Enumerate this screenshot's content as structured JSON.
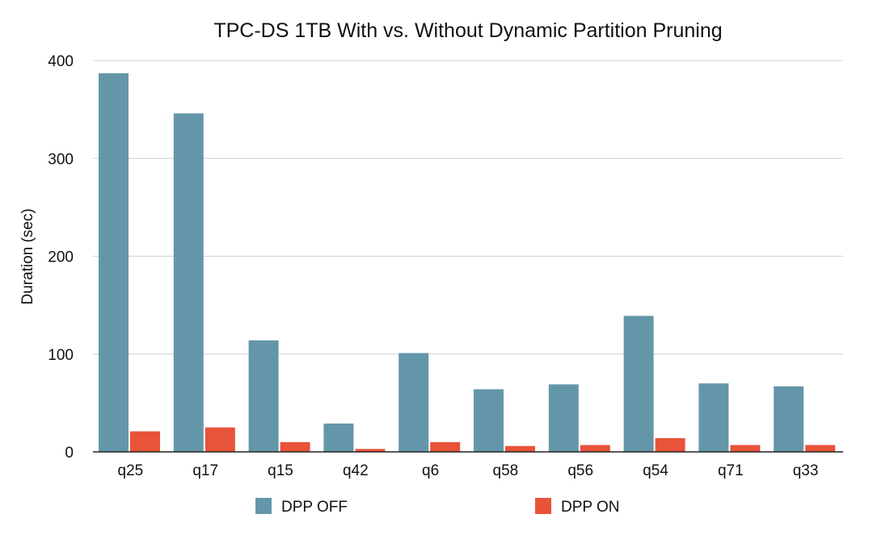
{
  "chart_data": {
    "type": "bar",
    "title": "TPC-DS 1TB With vs. Without Dynamic Partition Pruning",
    "xlabel": "",
    "ylabel": "Duration (sec)",
    "ylim": [
      0,
      400
    ],
    "yticks": [
      0,
      100,
      200,
      300,
      400
    ],
    "grid": true,
    "legend_position": "bottom",
    "categories": [
      "q25",
      "q17",
      "q15",
      "q42",
      "q6",
      "q58",
      "q56",
      "q54",
      "q71",
      "q33"
    ],
    "series": [
      {
        "name": "DPP OFF",
        "color": "#6496aa",
        "values": [
          387,
          346,
          114,
          29,
          101,
          64,
          69,
          139,
          70,
          67
        ]
      },
      {
        "name": "DPP ON",
        "color": "#e8533a",
        "values": [
          21,
          25,
          10,
          3,
          10,
          6,
          7,
          14,
          7,
          7
        ]
      }
    ]
  }
}
